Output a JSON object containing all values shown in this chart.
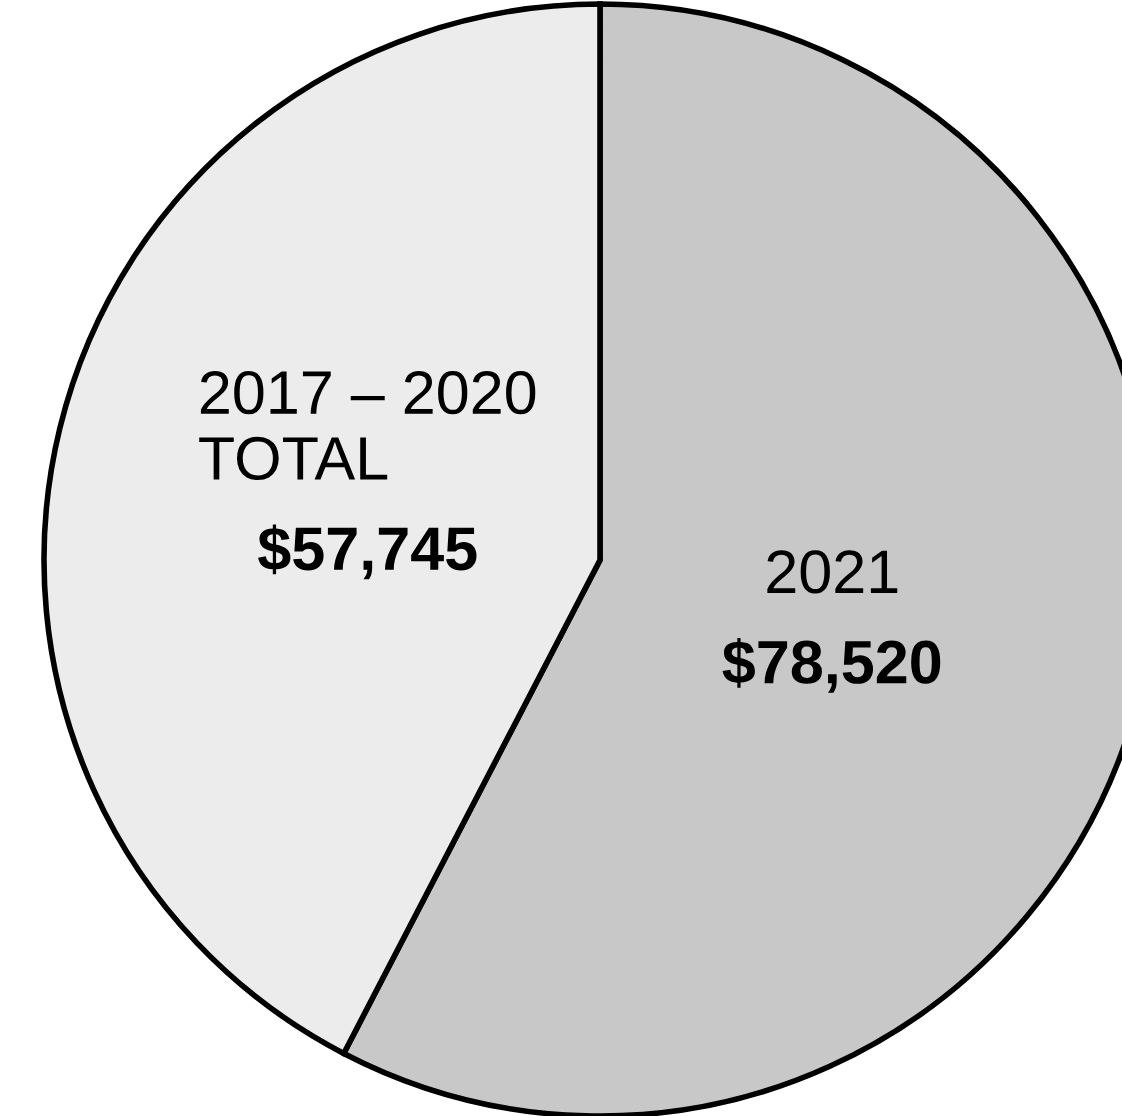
{
  "chart_data": {
    "type": "pie",
    "categories": [
      "2021",
      "2017 – 2020\nTOTAL"
    ],
    "values": [
      78520,
      57745
    ],
    "colors": [
      "#c8c8c8",
      "#ececec"
    ],
    "value_labels": [
      "$78,520",
      "$57,745"
    ]
  }
}
